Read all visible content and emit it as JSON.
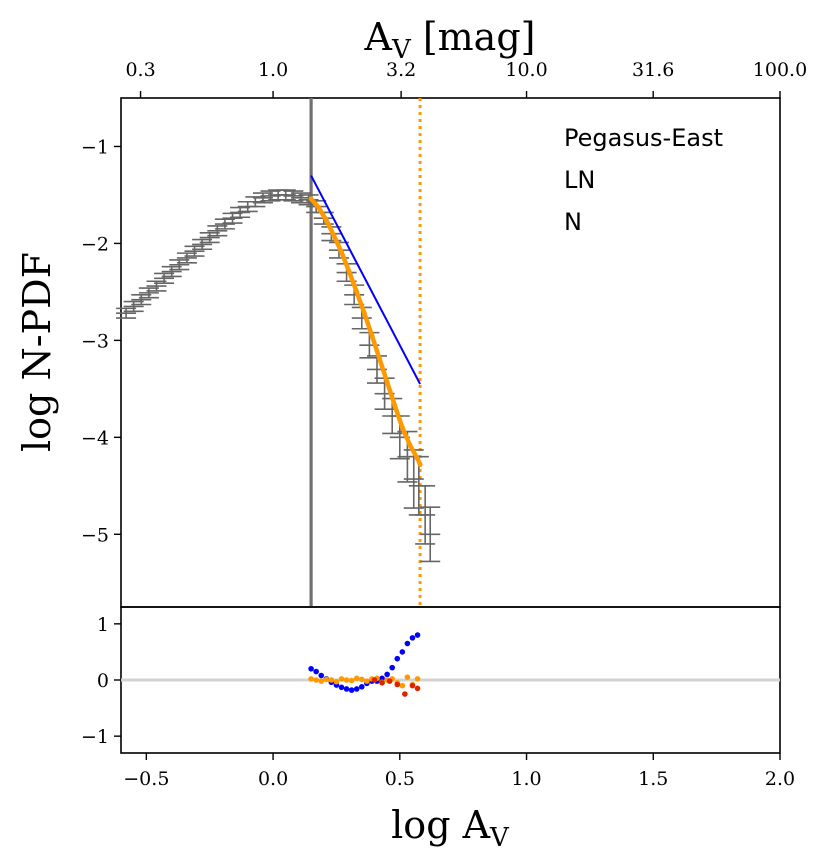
{
  "chart_data": {
    "type": "scatter",
    "top_axis": {
      "label_main": "A",
      "label_sub": "V",
      "label_unit": " [mag]",
      "tick_labels": [
        "0.3",
        "1.0",
        "3.2",
        "10.0",
        "31.6",
        "100.0"
      ]
    },
    "main_panel": {
      "ylabel": "log N-PDF",
      "ylim": [
        -5.75,
        -0.5
      ],
      "yticks": [
        -1,
        -2,
        -3,
        -4,
        -5
      ],
      "ytick_labels": [
        "−1",
        "−2",
        "−3",
        "−4",
        "−5"
      ],
      "legend": [
        "Pegasus-East",
        "LN",
        "N"
      ],
      "legend_position": "top-right",
      "vertical_lines": [
        {
          "name": "completeness-limit",
          "x": 0.15,
          "color": "#707070",
          "style": "solid"
        },
        {
          "name": "fit-upper-limit",
          "x": 0.58,
          "color": "#ff9900",
          "style": "dotted"
        }
      ],
      "series": [
        {
          "name": "N-PDF data",
          "color": "#666666",
          "x": [
            -0.58,
            -0.55,
            -0.52,
            -0.49,
            -0.46,
            -0.43,
            -0.4,
            -0.37,
            -0.34,
            -0.31,
            -0.28,
            -0.25,
            -0.22,
            -0.19,
            -0.16,
            -0.13,
            -0.1,
            -0.07,
            -0.04,
            -0.01,
            0.02,
            0.05,
            0.08,
            0.11,
            0.14,
            0.17,
            0.2,
            0.23,
            0.26,
            0.29,
            0.32,
            0.35,
            0.38,
            0.41,
            0.44,
            0.47,
            0.5,
            0.53,
            0.555,
            0.575,
            0.6,
            0.62
          ],
          "y": [
            -2.72,
            -2.65,
            -2.58,
            -2.51,
            -2.44,
            -2.36,
            -2.29,
            -2.22,
            -2.15,
            -2.08,
            -2.01,
            -1.94,
            -1.87,
            -1.8,
            -1.74,
            -1.68,
            -1.62,
            -1.57,
            -1.53,
            -1.51,
            -1.5,
            -1.5,
            -1.51,
            -1.53,
            -1.55,
            -1.62,
            -1.74,
            -1.9,
            -2.07,
            -2.3,
            -2.53,
            -2.77,
            -3.05,
            -3.3,
            -3.55,
            -3.78,
            -4.0,
            -4.2,
            -4.43,
            -4.5,
            -4.8,
            -5.0
          ],
          "yerr": [
            0.05,
            0.05,
            0.05,
            0.05,
            0.05,
            0.05,
            0.05,
            0.05,
            0.05,
            0.05,
            0.05,
            0.05,
            0.05,
            0.05,
            0.05,
            0.05,
            0.05,
            0.05,
            0.05,
            0.05,
            0.05,
            0.05,
            0.05,
            0.05,
            0.05,
            0.06,
            0.06,
            0.07,
            0.08,
            0.09,
            0.1,
            0.11,
            0.13,
            0.14,
            0.16,
            0.18,
            0.22,
            0.26,
            0.3,
            0.3,
            0.3,
            0.28
          ]
        },
        {
          "name": "LN",
          "color": "#ff9900",
          "x": [
            0.15,
            0.18,
            0.21,
            0.24,
            0.27,
            0.3,
            0.33,
            0.36,
            0.39,
            0.42,
            0.45,
            0.48,
            0.51,
            0.54,
            0.57,
            0.58
          ],
          "y": [
            -1.54,
            -1.63,
            -1.76,
            -1.92,
            -2.09,
            -2.29,
            -2.5,
            -2.72,
            -2.95,
            -3.19,
            -3.43,
            -3.67,
            -3.9,
            -4.08,
            -4.22,
            -4.28
          ]
        },
        {
          "name": "N",
          "color": "#0000ff",
          "x": [
            0.15,
            0.58
          ],
          "y": [
            -1.3,
            -3.45
          ]
        }
      ]
    },
    "residual_panel": {
      "ylim": [
        -1.3,
        1.3
      ],
      "yticks": [
        1,
        0,
        -1
      ],
      "ytick_labels": [
        "1",
        "0",
        "−1"
      ],
      "zero_line_color": "#d3d3d3",
      "series": [
        {
          "name": "N residuals",
          "color": "#0000ff",
          "x": [
            0.15,
            0.17,
            0.19,
            0.21,
            0.23,
            0.25,
            0.27,
            0.29,
            0.31,
            0.33,
            0.35,
            0.37,
            0.39,
            0.41,
            0.43,
            0.45,
            0.47,
            0.49,
            0.51,
            0.53,
            0.55,
            0.57
          ],
          "y": [
            0.2,
            0.15,
            0.08,
            0.02,
            -0.04,
            -0.09,
            -0.13,
            -0.16,
            -0.18,
            -0.16,
            -0.12,
            -0.06,
            -0.02,
            -0.02,
            0.03,
            0.1,
            0.22,
            0.38,
            0.5,
            0.65,
            0.75,
            0.8
          ]
        },
        {
          "name": "LN residuals",
          "color": "#ff9900",
          "x": [
            0.15,
            0.17,
            0.19,
            0.21,
            0.23,
            0.25,
            0.27,
            0.29,
            0.31,
            0.33,
            0.35,
            0.37,
            0.39,
            0.41,
            0.43,
            0.45,
            0.47,
            0.49,
            0.51,
            0.53,
            0.55,
            0.57
          ],
          "y": [
            0.02,
            0.0,
            -0.02,
            0.01,
            0.0,
            -0.03,
            0.02,
            0.0,
            -0.01,
            0.03,
            0.01,
            -0.02,
            0.02,
            0.03,
            -0.04,
            0.0,
            0.02,
            -0.05,
            -0.1,
            0.05,
            -0.08,
            0.02
          ]
        },
        {
          "name": "LN residuals (red)",
          "color": "#dd2200",
          "x": [
            0.4,
            0.43,
            0.46,
            0.49,
            0.52,
            0.55,
            0.57
          ],
          "y": [
            0.0,
            -0.05,
            -0.02,
            -0.08,
            -0.25,
            -0.1,
            -0.15
          ]
        }
      ]
    },
    "x_axis": {
      "label_main": "log A",
      "label_sub": "V",
      "xlim": [
        -0.6,
        2.0
      ],
      "ticks": [
        -0.5,
        0.0,
        0.5,
        1.0,
        1.5,
        2.0
      ],
      "tick_labels": [
        "−0.5",
        "0.0",
        "0.5",
        "1.0",
        "1.5",
        "2.0"
      ]
    }
  }
}
